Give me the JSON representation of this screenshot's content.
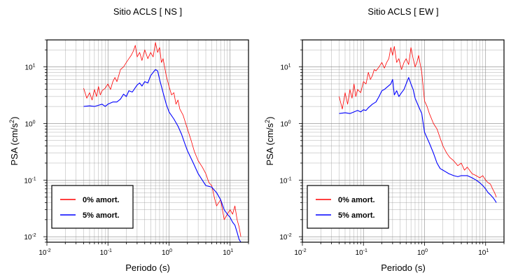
{
  "chart_data": [
    {
      "type": "line",
      "title": "Sitio ACLS [ NS ]",
      "xlabel": "Periodo (s)",
      "ylabel_main": "PSA (cm/s",
      "ylabel_sup": "2",
      "ylabel_tail": ")",
      "xscale": "log",
      "yscale": "log",
      "xlim": [
        0.01,
        20
      ],
      "ylim": [
        0.008,
        30
      ],
      "grid": true,
      "legend_position": "bottom-left",
      "x_ticks": [
        {
          "base": "10",
          "exp": "-2"
        },
        {
          "base": "10",
          "exp": "-1"
        },
        {
          "base": "10",
          "exp": "0"
        },
        {
          "base": "10",
          "exp": "1"
        }
      ],
      "y_ticks": [
        {
          "base": "10",
          "exp": "-2"
        },
        {
          "base": "10",
          "exp": "-1"
        },
        {
          "base": "10",
          "exp": "0"
        },
        {
          "base": "10",
          "exp": "1"
        }
      ],
      "series": [
        {
          "name": "0% amort.",
          "color": "#ff0000",
          "x": [
            0.04,
            0.045,
            0.05,
            0.055,
            0.06,
            0.065,
            0.07,
            0.075,
            0.08,
            0.09,
            0.1,
            0.11,
            0.12,
            0.13,
            0.14,
            0.15,
            0.16,
            0.18,
            0.2,
            0.22,
            0.24,
            0.26,
            0.28,
            0.3,
            0.33,
            0.36,
            0.4,
            0.45,
            0.5,
            0.55,
            0.6,
            0.65,
            0.7,
            0.75,
            0.8,
            0.9,
            1.0,
            1.1,
            1.2,
            1.3,
            1.4,
            1.5,
            1.7,
            2.0,
            2.3,
            2.6,
            3.0,
            3.5,
            4.0,
            4.5,
            5.0,
            5.5,
            6.0,
            7.0,
            8.0,
            9.0,
            10.0,
            11.0,
            12.0,
            13.0,
            14.0,
            15.0
          ],
          "y": [
            4.2,
            2.8,
            3.5,
            2.6,
            4.0,
            3.0,
            4.5,
            3.2,
            3.8,
            4.2,
            5.0,
            4.0,
            5.5,
            6.5,
            5.5,
            7.0,
            9.0,
            10.0,
            12.0,
            14.0,
            16.0,
            19.0,
            24.0,
            15.0,
            18.0,
            13.0,
            20.0,
            14.0,
            18.0,
            15.0,
            27.0,
            18.0,
            22.0,
            12.0,
            14.0,
            7.0,
            4.5,
            3.2,
            3.5,
            2.2,
            2.6,
            1.8,
            1.4,
            0.8,
            0.5,
            0.32,
            0.22,
            0.17,
            0.13,
            0.09,
            0.08,
            0.05,
            0.035,
            0.045,
            0.02,
            0.025,
            0.03,
            0.025,
            0.035,
            0.02,
            0.015,
            0.01
          ]
        },
        {
          "name": "5% amort.",
          "color": "#0000ff",
          "x": [
            0.04,
            0.05,
            0.06,
            0.07,
            0.08,
            0.09,
            0.1,
            0.12,
            0.14,
            0.16,
            0.18,
            0.2,
            0.22,
            0.25,
            0.28,
            0.3,
            0.33,
            0.36,
            0.4,
            0.45,
            0.5,
            0.55,
            0.6,
            0.65,
            0.7,
            0.8,
            0.9,
            1.0,
            1.2,
            1.4,
            1.6,
            1.8,
            2.0,
            2.5,
            3.0,
            3.5,
            4.0,
            5.0,
            6.0,
            7.0,
            8.0,
            9.0,
            10.0,
            11.0,
            12.0,
            13.0,
            14.0,
            15.0
          ],
          "y": [
            2.0,
            2.05,
            2.0,
            2.1,
            2.2,
            2.0,
            2.2,
            2.4,
            2.4,
            2.7,
            3.3,
            3.0,
            3.8,
            3.6,
            4.3,
            4.8,
            5.2,
            4.6,
            5.5,
            5.2,
            7.0,
            8.0,
            9.0,
            8.5,
            6.0,
            3.5,
            2.2,
            1.6,
            1.2,
            0.9,
            0.65,
            0.45,
            0.33,
            0.2,
            0.13,
            0.1,
            0.08,
            0.075,
            0.06,
            0.045,
            0.03,
            0.025,
            0.022,
            0.018,
            0.016,
            0.012,
            0.009,
            0.008
          ]
        }
      ]
    },
    {
      "type": "line",
      "title": "Sitio ACLS [ EW ]",
      "xlabel": "Periodo (s)",
      "ylabel_main": "PSA (cm/s",
      "ylabel_sup": "2",
      "ylabel_tail": ")",
      "xscale": "log",
      "yscale": "log",
      "xlim": [
        0.01,
        20
      ],
      "ylim": [
        0.008,
        30
      ],
      "grid": true,
      "legend_position": "bottom-left",
      "x_ticks": [
        {
          "base": "10",
          "exp": "-2"
        },
        {
          "base": "10",
          "exp": "-1"
        },
        {
          "base": "10",
          "exp": "0"
        },
        {
          "base": "10",
          "exp": "1"
        }
      ],
      "y_ticks": [
        {
          "base": "10",
          "exp": "-2"
        },
        {
          "base": "10",
          "exp": "-1"
        },
        {
          "base": "10",
          "exp": "0"
        },
        {
          "base": "10",
          "exp": "1"
        }
      ],
      "series": [
        {
          "name": "0% amort.",
          "color": "#ff0000",
          "x": [
            0.04,
            0.045,
            0.05,
            0.055,
            0.06,
            0.065,
            0.07,
            0.075,
            0.08,
            0.09,
            0.1,
            0.11,
            0.12,
            0.13,
            0.14,
            0.15,
            0.16,
            0.18,
            0.2,
            0.22,
            0.24,
            0.26,
            0.28,
            0.3,
            0.32,
            0.35,
            0.38,
            0.42,
            0.46,
            0.5,
            0.55,
            0.6,
            0.65,
            0.7,
            0.75,
            0.8,
            0.9,
            1.0,
            1.1,
            1.2,
            1.4,
            1.6,
            1.8,
            2.0,
            2.3,
            2.6,
            3.0,
            3.5,
            4.0,
            4.5,
            5.0,
            6.0,
            7.0,
            8.0,
            9.0,
            10.0,
            11.0,
            12.0,
            13.0,
            14.0,
            15.0
          ],
          "y": [
            3.0,
            1.8,
            3.5,
            2.2,
            4.0,
            2.8,
            5.0,
            3.0,
            4.0,
            3.5,
            5.5,
            5.0,
            8.0,
            6.0,
            7.0,
            9.0,
            8.5,
            10.0,
            12.0,
            9.5,
            12.0,
            14.0,
            22.0,
            16.0,
            23.0,
            12.0,
            14.0,
            9.0,
            12.0,
            14.0,
            11.0,
            22.0,
            14.0,
            10.0,
            12.0,
            16.0,
            8.0,
            2.5,
            2.0,
            1.5,
            1.0,
            0.8,
            0.55,
            0.4,
            0.3,
            0.25,
            0.22,
            0.18,
            0.2,
            0.15,
            0.17,
            0.13,
            0.12,
            0.11,
            0.12,
            0.1,
            0.09,
            0.085,
            0.07,
            0.06,
            0.05
          ]
        },
        {
          "name": "5% amort.",
          "color": "#0000ff",
          "x": [
            0.04,
            0.05,
            0.06,
            0.07,
            0.08,
            0.09,
            0.1,
            0.11,
            0.12,
            0.14,
            0.16,
            0.18,
            0.2,
            0.22,
            0.25,
            0.28,
            0.3,
            0.32,
            0.35,
            0.38,
            0.42,
            0.46,
            0.5,
            0.55,
            0.6,
            0.65,
            0.7,
            0.8,
            0.9,
            1.0,
            1.2,
            1.4,
            1.6,
            1.8,
            2.0,
            2.5,
            3.0,
            3.5,
            4.0,
            5.0,
            6.0,
            7.0,
            8.0,
            9.0,
            10.0,
            11.0,
            12.0,
            13.0,
            14.0,
            15.0
          ],
          "y": [
            1.5,
            1.55,
            1.5,
            1.6,
            1.7,
            1.6,
            1.75,
            1.7,
            1.9,
            2.2,
            2.4,
            3.0,
            3.8,
            4.0,
            4.5,
            5.0,
            6.0,
            3.2,
            3.8,
            3.0,
            3.5,
            4.0,
            5.0,
            6.5,
            5.0,
            4.0,
            2.8,
            2.0,
            1.5,
            0.7,
            0.45,
            0.3,
            0.2,
            0.16,
            0.15,
            0.13,
            0.12,
            0.115,
            0.12,
            0.12,
            0.11,
            0.1,
            0.09,
            0.08,
            0.07,
            0.06,
            0.055,
            0.05,
            0.045,
            0.04
          ]
        }
      ]
    }
  ]
}
